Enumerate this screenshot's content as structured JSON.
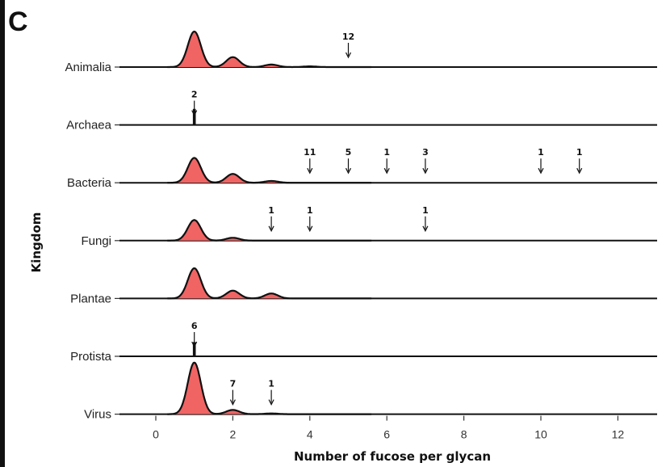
{
  "panel_label": "C",
  "chart_data": {
    "type": "area",
    "subtype": "ridgeline-density",
    "xlabel": "Number of fucose per glycan",
    "ylabel": "Kingdom",
    "xlim": [
      -0.8,
      13
    ],
    "xticks": [
      0,
      2,
      4,
      6,
      8,
      10,
      12
    ],
    "fill_color": "#f06464",
    "line_color": "#111111",
    "categories": [
      "Animalia",
      "Archaea",
      "Bacteria",
      "Fungi",
      "Plantae",
      "Protista",
      "Virus"
    ],
    "series": [
      {
        "name": "Animalia",
        "peaks": [
          {
            "x": 1,
            "height": 1.0
          },
          {
            "x": 2,
            "height": 0.28
          },
          {
            "x": 3,
            "height": 0.07
          },
          {
            "x": 4,
            "height": 0.02
          }
        ],
        "annotations": [
          {
            "x": 5,
            "label": "12"
          }
        ]
      },
      {
        "name": "Archaea",
        "spike": {
          "x": 1,
          "height": 0.45
        },
        "annotations": [
          {
            "x": 1,
            "label": "2"
          }
        ]
      },
      {
        "name": "Bacteria",
        "peaks": [
          {
            "x": 1,
            "height": 0.7
          },
          {
            "x": 2,
            "height": 0.25
          },
          {
            "x": 3,
            "height": 0.05
          }
        ],
        "annotations": [
          {
            "x": 4,
            "label": "11"
          },
          {
            "x": 5,
            "label": "5"
          },
          {
            "x": 6,
            "label": "1"
          },
          {
            "x": 7,
            "label": "3"
          },
          {
            "x": 10,
            "label": "1"
          },
          {
            "x": 11,
            "label": "1"
          }
        ]
      },
      {
        "name": "Fungi",
        "peaks": [
          {
            "x": 1,
            "height": 0.58
          },
          {
            "x": 2,
            "height": 0.08
          }
        ],
        "annotations": [
          {
            "x": 3,
            "label": "1"
          },
          {
            "x": 4,
            "label": "1"
          },
          {
            "x": 7,
            "label": "1"
          }
        ]
      },
      {
        "name": "Plantae",
        "peaks": [
          {
            "x": 1,
            "height": 0.85
          },
          {
            "x": 2,
            "height": 0.22
          },
          {
            "x": 3,
            "height": 0.14
          }
        ],
        "annotations": []
      },
      {
        "name": "Protista",
        "spike": {
          "x": 1,
          "height": 0.4
        },
        "annotations": [
          {
            "x": 1,
            "label": "6"
          }
        ]
      },
      {
        "name": "Virus",
        "peaks": [
          {
            "x": 1,
            "height": 1.45
          },
          {
            "x": 2,
            "height": 0.12
          },
          {
            "x": 3,
            "height": 0.02
          }
        ],
        "annotations": [
          {
            "x": 2,
            "label": "7"
          },
          {
            "x": 3,
            "label": "1"
          }
        ]
      }
    ]
  }
}
